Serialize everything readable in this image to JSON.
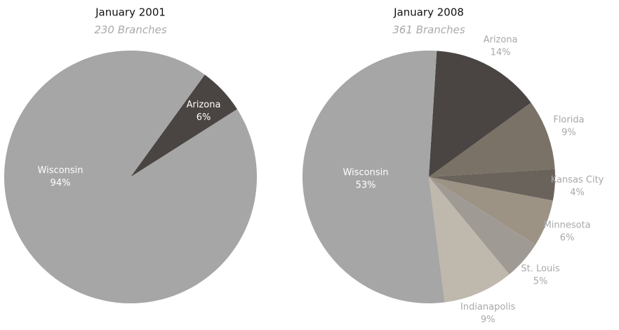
{
  "chart_data": [
    {
      "type": "pie",
      "title": "January 2001",
      "subtitle": "230 Branches",
      "categories": [
        "Arizona",
        "Wisconsin"
      ],
      "values": [
        6,
        94
      ],
      "value_labels": [
        "6%",
        "94%"
      ],
      "colors": [
        "#4a4542",
        "#a6a6a6"
      ]
    },
    {
      "type": "pie",
      "title": "January 2008",
      "subtitle": "361 Branches",
      "categories": [
        "Arizona",
        "Florida",
        "Kansas City",
        "Minnesota",
        "St. Louis",
        "Indianapolis",
        "Wisconsin"
      ],
      "values": [
        14,
        9,
        4,
        6,
        5,
        9,
        53
      ],
      "value_labels": [
        "14%",
        "9%",
        "4%",
        "6%",
        "5%",
        "9%",
        "53%"
      ],
      "colors": [
        "#4a4542",
        "#7a7266",
        "#6a635c",
        "#9c9385",
        "#a09a95",
        "#bfb8ac",
        "#a6a6a6"
      ]
    }
  ]
}
